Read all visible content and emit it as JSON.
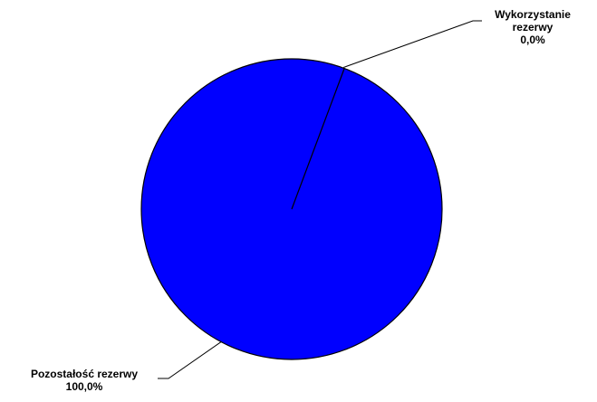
{
  "chart_data": {
    "type": "pie",
    "title": "",
    "slices": [
      {
        "label": "Wykorzystanie rezerwy",
        "label_lines": [
          "Wykorzystanie",
          "rezerwy"
        ],
        "value": 0.0,
        "percent_label": "0,0%",
        "color": "#0000ff"
      },
      {
        "label": "Pozostałość rezerwy",
        "label_lines": [
          "Pozostałość rezerwy"
        ],
        "value": 100.0,
        "percent_label": "100,0%",
        "color": "#0000ff"
      }
    ],
    "edge_color": "#000000",
    "legend": "none"
  }
}
